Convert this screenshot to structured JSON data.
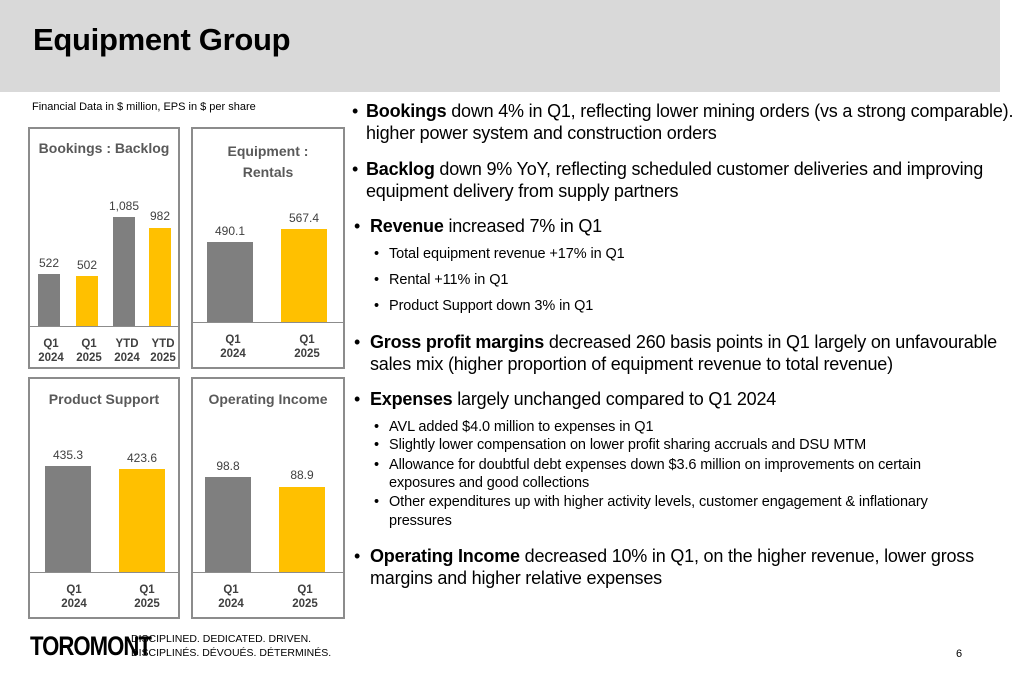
{
  "header": {
    "title": "Equipment Group"
  },
  "note": "Financial Data in $ million, EPS in $ per share",
  "charts": {
    "bookings_backlog": {
      "title": "Bookings : Backlog",
      "values": [
        "522",
        "502",
        "1,085",
        "982"
      ],
      "categories": [
        [
          "Q1",
          "2024"
        ],
        [
          "Q1",
          "2025"
        ],
        [
          "YTD",
          "2024"
        ],
        [
          "YTD",
          "2025"
        ]
      ]
    },
    "equipment_rentals": {
      "title_line1": "Equipment :",
      "title_line2": "Rentals",
      "values": [
        "490.1",
        "567.4"
      ],
      "categories": [
        [
          "Q1",
          "2024"
        ],
        [
          "Q1",
          "2025"
        ]
      ]
    },
    "product_support": {
      "title": "Product Support",
      "values": [
        "435.3",
        "423.6"
      ],
      "categories": [
        [
          "Q1",
          "2024"
        ],
        [
          "Q1",
          "2025"
        ]
      ]
    },
    "operating_income": {
      "title": "Operating Income",
      "values": [
        "98.8",
        "88.9"
      ],
      "categories": [
        [
          "Q1",
          "2024"
        ],
        [
          "Q1",
          "2025"
        ]
      ]
    }
  },
  "chart_data": [
    {
      "type": "bar",
      "title": "Bookings : Backlog",
      "categories": [
        "Q1 2024",
        "Q1 2025",
        "YTD 2024",
        "YTD 2025"
      ],
      "values": [
        522,
        502,
        1085,
        982
      ],
      "colors": [
        "#7f7f7f",
        "#ffc000",
        "#7f7f7f",
        "#ffc000"
      ]
    },
    {
      "type": "bar",
      "title": "Equipment : Rentals",
      "categories": [
        "Q1 2024",
        "Q1 2025"
      ],
      "values": [
        490.1,
        567.4
      ],
      "colors": [
        "#7f7f7f",
        "#ffc000"
      ]
    },
    {
      "type": "bar",
      "title": "Product Support",
      "categories": [
        "Q1 2024",
        "Q1 2025"
      ],
      "values": [
        435.3,
        423.6
      ],
      "colors": [
        "#7f7f7f",
        "#ffc000"
      ]
    },
    {
      "type": "bar",
      "title": "Operating Income",
      "categories": [
        "Q1 2024",
        "Q1 2025"
      ],
      "values": [
        98.8,
        88.9
      ],
      "colors": [
        "#7f7f7f",
        "#ffc000"
      ]
    }
  ],
  "bullets": {
    "bookings": {
      "label": "Bookings",
      "text1": " down 4% in Q1, reflecting lower mining orders (vs a strong comparable).",
      "text2": "higher power system and construction orders"
    },
    "backlog": {
      "label": "Backlog",
      "text1": " down 9% YoY, reflecting scheduled customer deliveries and improving",
      "text2": "equipment delivery from supply partners"
    },
    "revenue": {
      "label": "Revenue",
      "text": " increased 7% in Q1",
      "subs": [
        "Total equipment revenue +17% in Q1",
        "Rental +11% in Q1",
        "Product Support down 3% in Q1"
      ]
    },
    "gross": {
      "label": "Gross profit margins",
      "text1": " decreased 260 basis points in Q1 largely on unfavourable",
      "text2": "sales mix (higher proportion of equipment revenue to total revenue)"
    },
    "expenses": {
      "label": "Expenses",
      "text": " largely unchanged compared to Q1 2024",
      "subs": [
        "AVL added $4.0 million to expenses in Q1",
        "Slightly lower compensation on lower profit sharing accruals and DSU MTM",
        "Allowance for doubtful debt expenses down $3.6 million on improvements on certain",
        "exposures and good collections",
        "Other expenditures up with higher activity levels, customer engagement & inflationary",
        "pressures"
      ]
    },
    "opincome": {
      "label": "Operating Income",
      "text1": " decreased 10% in Q1, on the higher revenue, lower gross",
      "text2": "margins and higher relative expenses"
    }
  },
  "footer": {
    "logo": "TOROMONT",
    "tagline_en": "DISCIPLINED. DEDICATED. DRIVEN.",
    "tagline_fr": "DISCIPLINÉS. DÉVOUÉS. DÉTERMINÉS.",
    "page": "6"
  }
}
